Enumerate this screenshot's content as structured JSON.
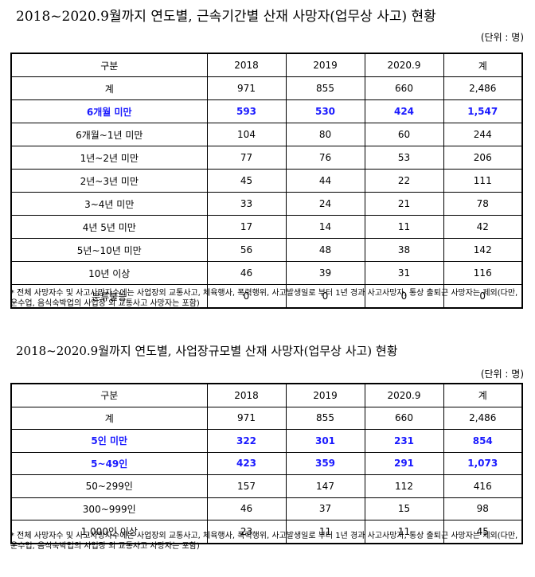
{
  "section1": {
    "title": "2018~2020.9월까지 연도별, 근속기간별 산재 사망자(업무상 사고) 현황",
    "unit": "(단위 : 명)",
    "header": [
      "구분",
      "2018",
      "2019",
      "2020.9",
      "계"
    ],
    "rows": [
      [
        "계",
        "971",
        "855",
        "660",
        "2,486"
      ],
      [
        "6개월 미만",
        "593",
        "530",
        "424",
        "1,547"
      ],
      [
        "6개월~1년 미만",
        "104",
        "80",
        "60",
        "244"
      ],
      [
        "1년~2년 미만",
        "77",
        "76",
        "53",
        "206"
      ],
      [
        "2년~3년 미만",
        "45",
        "44",
        "22",
        "111"
      ],
      [
        "3~4년 미만",
        "33",
        "24",
        "21",
        "78"
      ],
      [
        "4년 5년 미만",
        "17",
        "14",
        "11",
        "42"
      ],
      [
        "5년~10년 미만",
        "56",
        "48",
        "38",
        "142"
      ],
      [
        "10년 이상",
        "46",
        "39",
        "31",
        "116"
      ],
      [
        "분류불능",
        "0",
        "0",
        "0",
        "0"
      ]
    ],
    "highlight_rows": [
      1
    ],
    "note": "* 전체 사망자수 및 사고사망자수에는 사업장외 교통사고, 체육행사, 폭력행위, 사고발생일로 부터 1년 경과 사고사망자, 통상 출퇴근 사망자는 제외(다만, 운수업, 음식숙박업의 사업장 외 교통사고 사망자는 포함)"
  },
  "section2": {
    "title": "2018~2020.9월까지 연도별, 사업장규모별 산재 사망자(업무상 사고) 현황",
    "unit": "(단위 : 명)",
    "header": [
      "구분",
      "2018",
      "2019",
      "2020.9",
      "계"
    ],
    "rows": [
      [
        "계",
        "971",
        "855",
        "660",
        "2,486"
      ],
      [
        "5인 미만",
        "322",
        "301",
        "231",
        "854"
      ],
      [
        "5~49인",
        "423",
        "359",
        "291",
        "1,073"
      ],
      [
        "50~299인",
        "157",
        "147",
        "112",
        "416"
      ],
      [
        "300~999인",
        "46",
        "37",
        "15",
        "98"
      ],
      [
        "1,000인 이상",
        "23",
        "11",
        "11",
        "45"
      ]
    ],
    "highlight_rows": [
      1,
      2
    ],
    "note": "* 전체 사망자수 및 사고사망자수에는 사업장외 교통사고, 체육행사, 폭력행위, 사고발생일로 부터 1년 경과 사고사망자, 통상 출퇴근 사망자는 제외(다만, 운수업, 음식숙박업의 사업장 외 교통사고 사망자는 포함)"
  },
  "colors": {
    "highlight": "#1a1aff",
    "border": "#000000",
    "header_bg": "#ffffff"
  }
}
